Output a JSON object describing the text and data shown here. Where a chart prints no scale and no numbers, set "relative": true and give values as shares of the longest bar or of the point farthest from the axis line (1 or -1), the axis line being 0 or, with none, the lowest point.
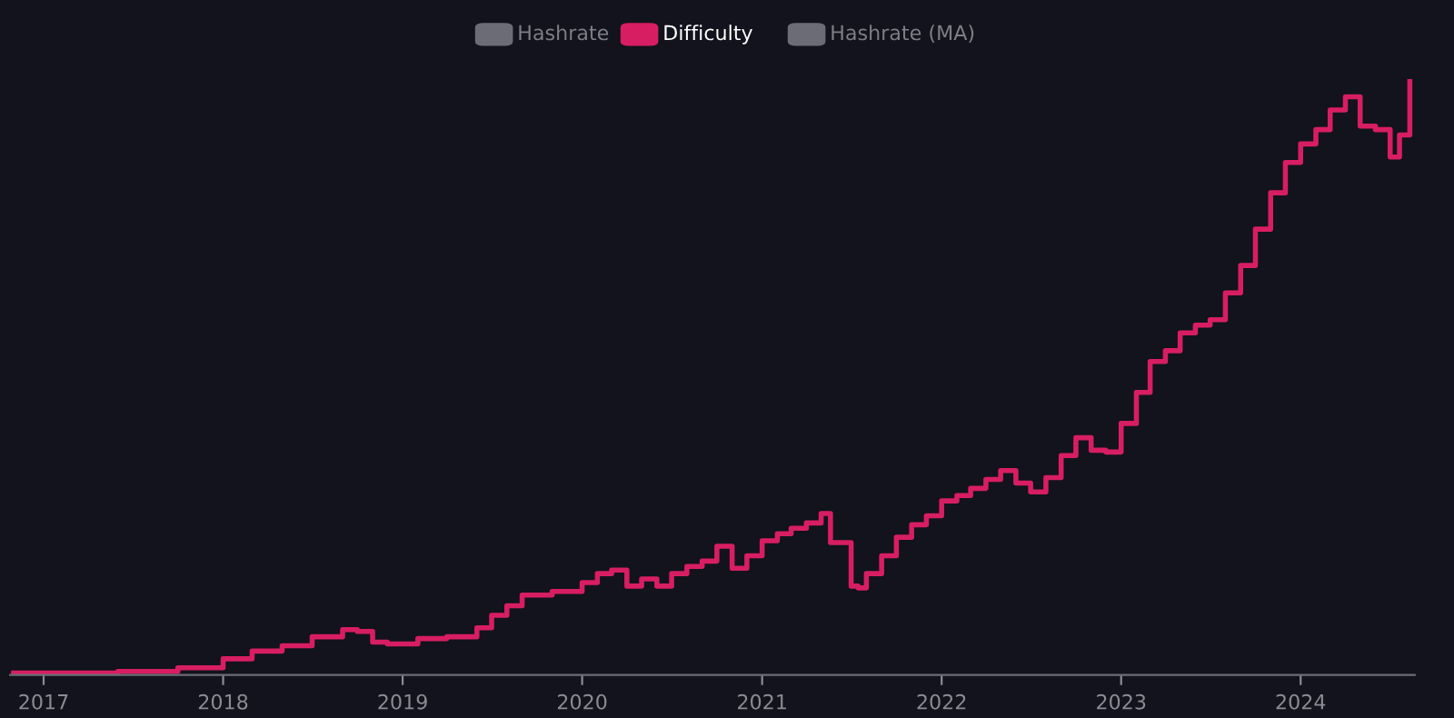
{
  "chart_data": {
    "type": "step",
    "relative": true,
    "legend": "top",
    "grid": false,
    "line_style": "solid",
    "marker": "none",
    "xlim": [
      "2016-10-25",
      "2024-08-20"
    ],
    "xticks": [
      "2017",
      "2018",
      "2019",
      "2020",
      "2021",
      "2022",
      "2023",
      "2024"
    ],
    "x": [
      "2016-11-01",
      "2017-06-01",
      "2017-10-01",
      "2018-01-01",
      "2018-03-01",
      "2018-05-01",
      "2018-07-01",
      "2018-09-01",
      "2018-10-01",
      "2018-11-01",
      "2018-12-01",
      "2019-02-01",
      "2019-04-01",
      "2019-06-01",
      "2019-07-01",
      "2019-08-01",
      "2019-09-01",
      "2019-11-01",
      "2020-01-01",
      "2020-02-01",
      "2020-03-01",
      "2020-04-01",
      "2020-05-01",
      "2020-06-01",
      "2020-07-01",
      "2020-08-01",
      "2020-09-01",
      "2020-10-01",
      "2020-11-01",
      "2020-12-01",
      "2021-01-01",
      "2021-02-01",
      "2021-03-01",
      "2021-04-01",
      "2021-05-01",
      "2021-05-20",
      "2021-07-01",
      "2021-07-15",
      "2021-08-01",
      "2021-09-01",
      "2021-10-01",
      "2021-11-01",
      "2021-12-01",
      "2022-01-01",
      "2022-02-01",
      "2022-03-01",
      "2022-04-01",
      "2022-05-01",
      "2022-06-01",
      "2022-07-01",
      "2022-08-01",
      "2022-09-01",
      "2022-10-01",
      "2022-11-01",
      "2022-12-01",
      "2023-01-01",
      "2023-02-01",
      "2023-03-01",
      "2023-04-01",
      "2023-05-01",
      "2023-06-01",
      "2023-07-01",
      "2023-08-01",
      "2023-09-01",
      "2023-10-01",
      "2023-11-01",
      "2023-12-01",
      "2024-01-01",
      "2024-02-01",
      "2024-03-01",
      "2024-04-01",
      "2024-05-01",
      "2024-06-01",
      "2024-07-01",
      "2024-07-20",
      "2024-08-10"
    ],
    "series": [
      {
        "name": "Hashrate",
        "color": "#6b6c75",
        "values": [
          null,
          null,
          null,
          null,
          null,
          null,
          null,
          null,
          null,
          null,
          null,
          null,
          null,
          null,
          null,
          null,
          null,
          null,
          null,
          null,
          null,
          null,
          null,
          null,
          null,
          null,
          null,
          null,
          null,
          null,
          null,
          null,
          null,
          null,
          null,
          null,
          null,
          null,
          null,
          null,
          null,
          null,
          null,
          null,
          null,
          null,
          null,
          null,
          null,
          null,
          null,
          null,
          null,
          null,
          null,
          null,
          null,
          null,
          null,
          null,
          null,
          null,
          null,
          null,
          null,
          null,
          null,
          null,
          null,
          null,
          null,
          null,
          null,
          null,
          null,
          null
        ]
      },
      {
        "name": "Difficulty",
        "color": "#d81e62",
        "values": [
          0.003,
          0.006,
          0.012,
          0.027,
          0.04,
          0.049,
          0.064,
          0.076,
          0.073,
          0.055,
          0.052,
          0.061,
          0.064,
          0.079,
          0.1,
          0.116,
          0.134,
          0.14,
          0.155,
          0.17,
          0.176,
          0.149,
          0.161,
          0.149,
          0.17,
          0.182,
          0.191,
          0.216,
          0.179,
          0.2,
          0.225,
          0.237,
          0.246,
          0.255,
          0.271,
          0.222,
          0.149,
          0.146,
          0.17,
          0.2,
          0.231,
          0.252,
          0.267,
          0.292,
          0.301,
          0.313,
          0.328,
          0.343,
          0.322,
          0.307,
          0.331,
          0.368,
          0.398,
          0.377,
          0.374,
          0.422,
          0.474,
          0.526,
          0.544,
          0.574,
          0.587,
          0.596,
          0.641,
          0.687,
          0.748,
          0.809,
          0.86,
          0.891,
          0.915,
          0.948,
          0.97,
          0.921,
          0.915,
          0.869,
          0.906,
          1
        ]
      },
      {
        "name": "Hashrate (MA)",
        "color": "#6b6c75",
        "values": [
          null,
          null,
          null,
          null,
          null,
          null,
          null,
          null,
          null,
          null,
          null,
          null,
          null,
          null,
          null,
          null,
          null,
          null,
          null,
          null,
          null,
          null,
          null,
          null,
          null,
          null,
          null,
          null,
          null,
          null,
          null,
          null,
          null,
          null,
          null,
          null,
          null,
          null,
          null,
          null,
          null,
          null,
          null,
          null,
          null,
          null,
          null,
          null,
          null,
          null,
          null,
          null,
          null,
          null,
          null,
          null,
          null,
          null,
          null,
          null,
          null,
          null,
          null,
          null,
          null,
          null,
          null,
          null,
          null,
          null,
          null,
          null,
          null,
          null,
          null,
          null
        ]
      }
    ]
  }
}
